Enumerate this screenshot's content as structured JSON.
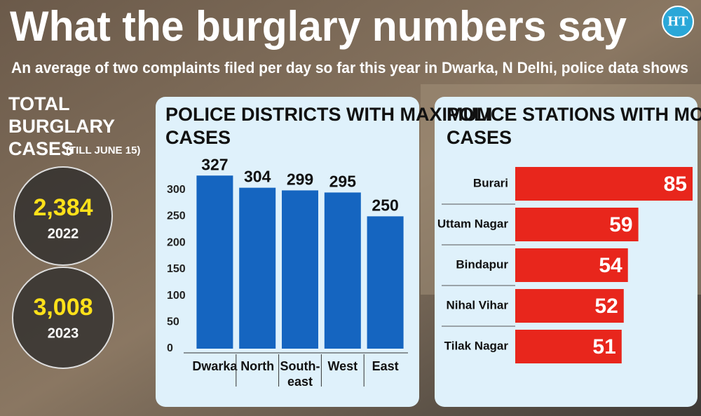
{
  "header": {
    "title": "What the burglary numbers say",
    "subtitle": "An average of two complaints filed per day so far this year in Dwarka, N Delhi, police data shows",
    "logo": "HT"
  },
  "totals": {
    "heading": "TOTAL BURGLARY CASES",
    "note": "(TILL JUNE 15)",
    "items": [
      {
        "count": "2,384",
        "year": "2022"
      },
      {
        "count": "3,008",
        "year": "2023"
      }
    ]
  },
  "chart_data": [
    {
      "type": "bar",
      "title": "POLICE DISTRICTS WITH MAXIMUM CASES",
      "categories": [
        "Dwarka",
        "North",
        "South-east",
        "West",
        "East"
      ],
      "values": [
        327,
        304,
        299,
        295,
        250
      ],
      "color": "#1565c0",
      "ylim": [
        0,
        330
      ],
      "yticks": [
        0,
        50,
        100,
        150,
        200,
        250,
        300
      ],
      "grid": false
    },
    {
      "type": "hbar",
      "title": "POLICE STATIONS WITH MOST CASES",
      "categories": [
        "Burari",
        "Uttam Nagar",
        "Bindapur",
        "Nihal Vihar",
        "Tilak Nagar"
      ],
      "values": [
        85,
        59,
        54,
        52,
        51
      ],
      "color": "#e8261c",
      "xlim": [
        0,
        85
      ]
    }
  ]
}
